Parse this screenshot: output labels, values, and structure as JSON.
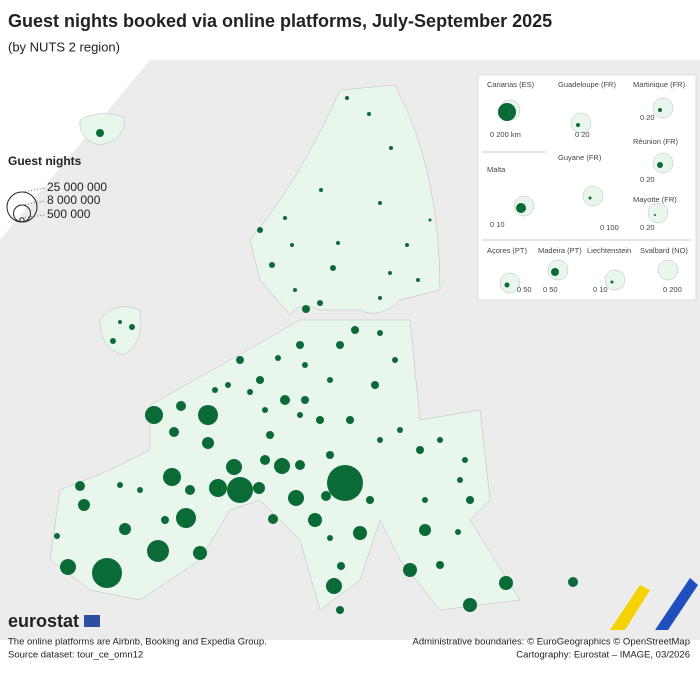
{
  "title": "Guest nights booked via online platforms, July-September 2025",
  "subtitle": "(by NUTS 2 region)",
  "legend": {
    "title": "Guest nights",
    "sizes": [
      {
        "value": 25000000,
        "label": "25 000 000"
      },
      {
        "value": 8000000,
        "label": "8 000 000"
      },
      {
        "value": 500000,
        "label": "500 000"
      }
    ]
  },
  "bubbles": [
    1778000,
    1000000,
    1000000,
    444000,
    444000,
    444000,
    444000,
    444000,
    1000000,
    1000000,
    444000,
    444000,
    444000,
    444000,
    444000,
    250000,
    1000000,
    1000000,
    444000,
    1778000,
    444000,
    444000,
    444000,
    1778000,
    1000000,
    1778000,
    1000000,
    1778000,
    1000000,
    1778000,
    1778000,
    1000000,
    1778000,
    1000000,
    2778000,
    1000000,
    1000000,
    1000000,
    1000000,
    1778000,
    1778000,
    1000000,
    1778000,
    9000000,
    11111000,
    2778000,
    2778000,
    4000000,
    9000000,
    2778000,
    9000000,
    18778000,
    7111000,
    4000000,
    2778000,
    36000000,
    7111000,
    2778000,
    1778000,
    7111000,
    5444000,
    2778000,
    5444000,
    2778000,
    1778000,
    7111000,
    1000000,
    1778000,
    1000000,
    1000000,
    1778000,
    1778000,
    25000000,
    13444000,
    11111000,
    4000000,
    4000000,
    7111000,
    1000000,
    2778000,
    1000000,
    1778000,
    5444000,
    1000000,
    4000000,
    5444000,
    1778000,
    5444000,
    5444000,
    1000000,
    1000000,
    1000000,
    1778000,
    1000000,
    1000000,
    2778000,
    1778000
  ],
  "insets": [
    {
      "name": "Canarias (ES)",
      "scale": "0      200 km",
      "value": 9000000
    },
    {
      "name": "Guadeloupe (FR)",
      "scale": "0  20",
      "value": 444000
    },
    {
      "name": "Martinique (FR)",
      "scale": "0  20",
      "value": 444000
    },
    {
      "name": "Réunion (FR)",
      "scale": "0  20",
      "value": 1000000
    },
    {
      "name": "Malta",
      "scale": "0  10",
      "value": 2778000
    },
    {
      "name": "Guyane (FR)",
      "scale": "0    100",
      "value": 250000
    },
    {
      "name": "Mayotte (FR)",
      "scale": "0  20",
      "value": 111000
    },
    {
      "name": "Açores (PT)",
      "scale": "0  50",
      "value": 694000
    },
    {
      "name": "Madeira (PT)",
      "scale": "0  50",
      "value": 1778000
    },
    {
      "name": "Liechtenstein",
      "scale": "0  10",
      "value": 250000
    },
    {
      "name": "Svalbard (NO)",
      "scale": "0   200"
    }
  ],
  "footer": {
    "logo": "eurostat",
    "note": "The online platforms are Airbnb, Booking and Expedia Group.",
    "source": "Source dataset: tour_ce_omn12",
    "boundaries": "Administrative boundaries: © EuroGeographics © OpenStreetMap",
    "cartography": "Cartography: Eurostat – IMAGE, 03/2026"
  }
}
